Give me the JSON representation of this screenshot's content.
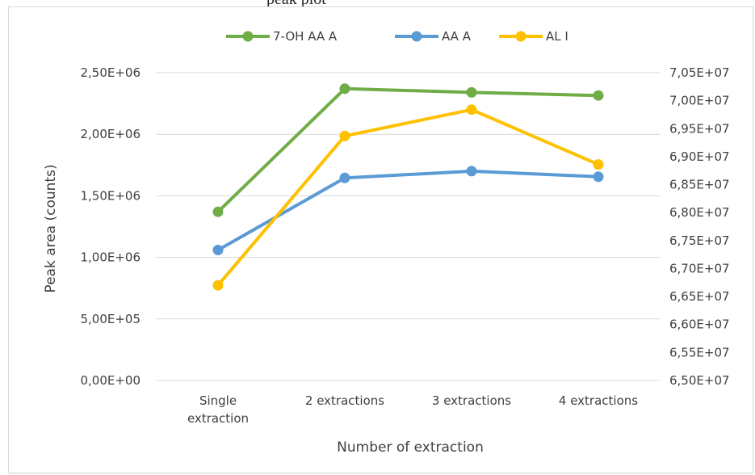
{
  "page_header_text": "peak plot",
  "chart_data": {
    "type": "line",
    "categories": [
      [
        "Single",
        "extraction"
      ],
      [
        "2 extractions"
      ],
      [
        "3 extractions"
      ],
      [
        "4 extractions"
      ]
    ],
    "series": [
      {
        "name": "7-OH AA A",
        "axis": "left",
        "color": "#70ad47",
        "values": [
          1370000,
          2370000,
          2340000,
          2315000
        ]
      },
      {
        "name": "AA A",
        "axis": "left",
        "color": "#5b9bd5",
        "values": [
          1060000,
          1645000,
          1700000,
          1655000
        ]
      },
      {
        "name": "AL I",
        "axis": "right",
        "color": "#ffc000",
        "values": [
          66700000,
          69370000,
          69840000,
          68860000
        ]
      }
    ],
    "xlabel": "Number of extraction",
    "ylabel": "Peak area (counts)",
    "ylim_left": [
      0,
      2500000
    ],
    "yticks_left": [
      "0,00E+00",
      "5,00E+05",
      "1,00E+06",
      "1,50E+06",
      "2,00E+06",
      "2,50E+06"
    ],
    "ylim_right": [
      65000000,
      70500000
    ],
    "yticks_right": [
      "6,50E+07",
      "6,55E+07",
      "6,60E+07",
      "6,65E+07",
      "6,70E+07",
      "6,75E+07",
      "6,80E+07",
      "6,85E+07",
      "6,90E+07",
      "6,95E+07",
      "7,00E+07",
      "7,05E+07"
    ],
    "grid": true,
    "legend_position": "top"
  }
}
